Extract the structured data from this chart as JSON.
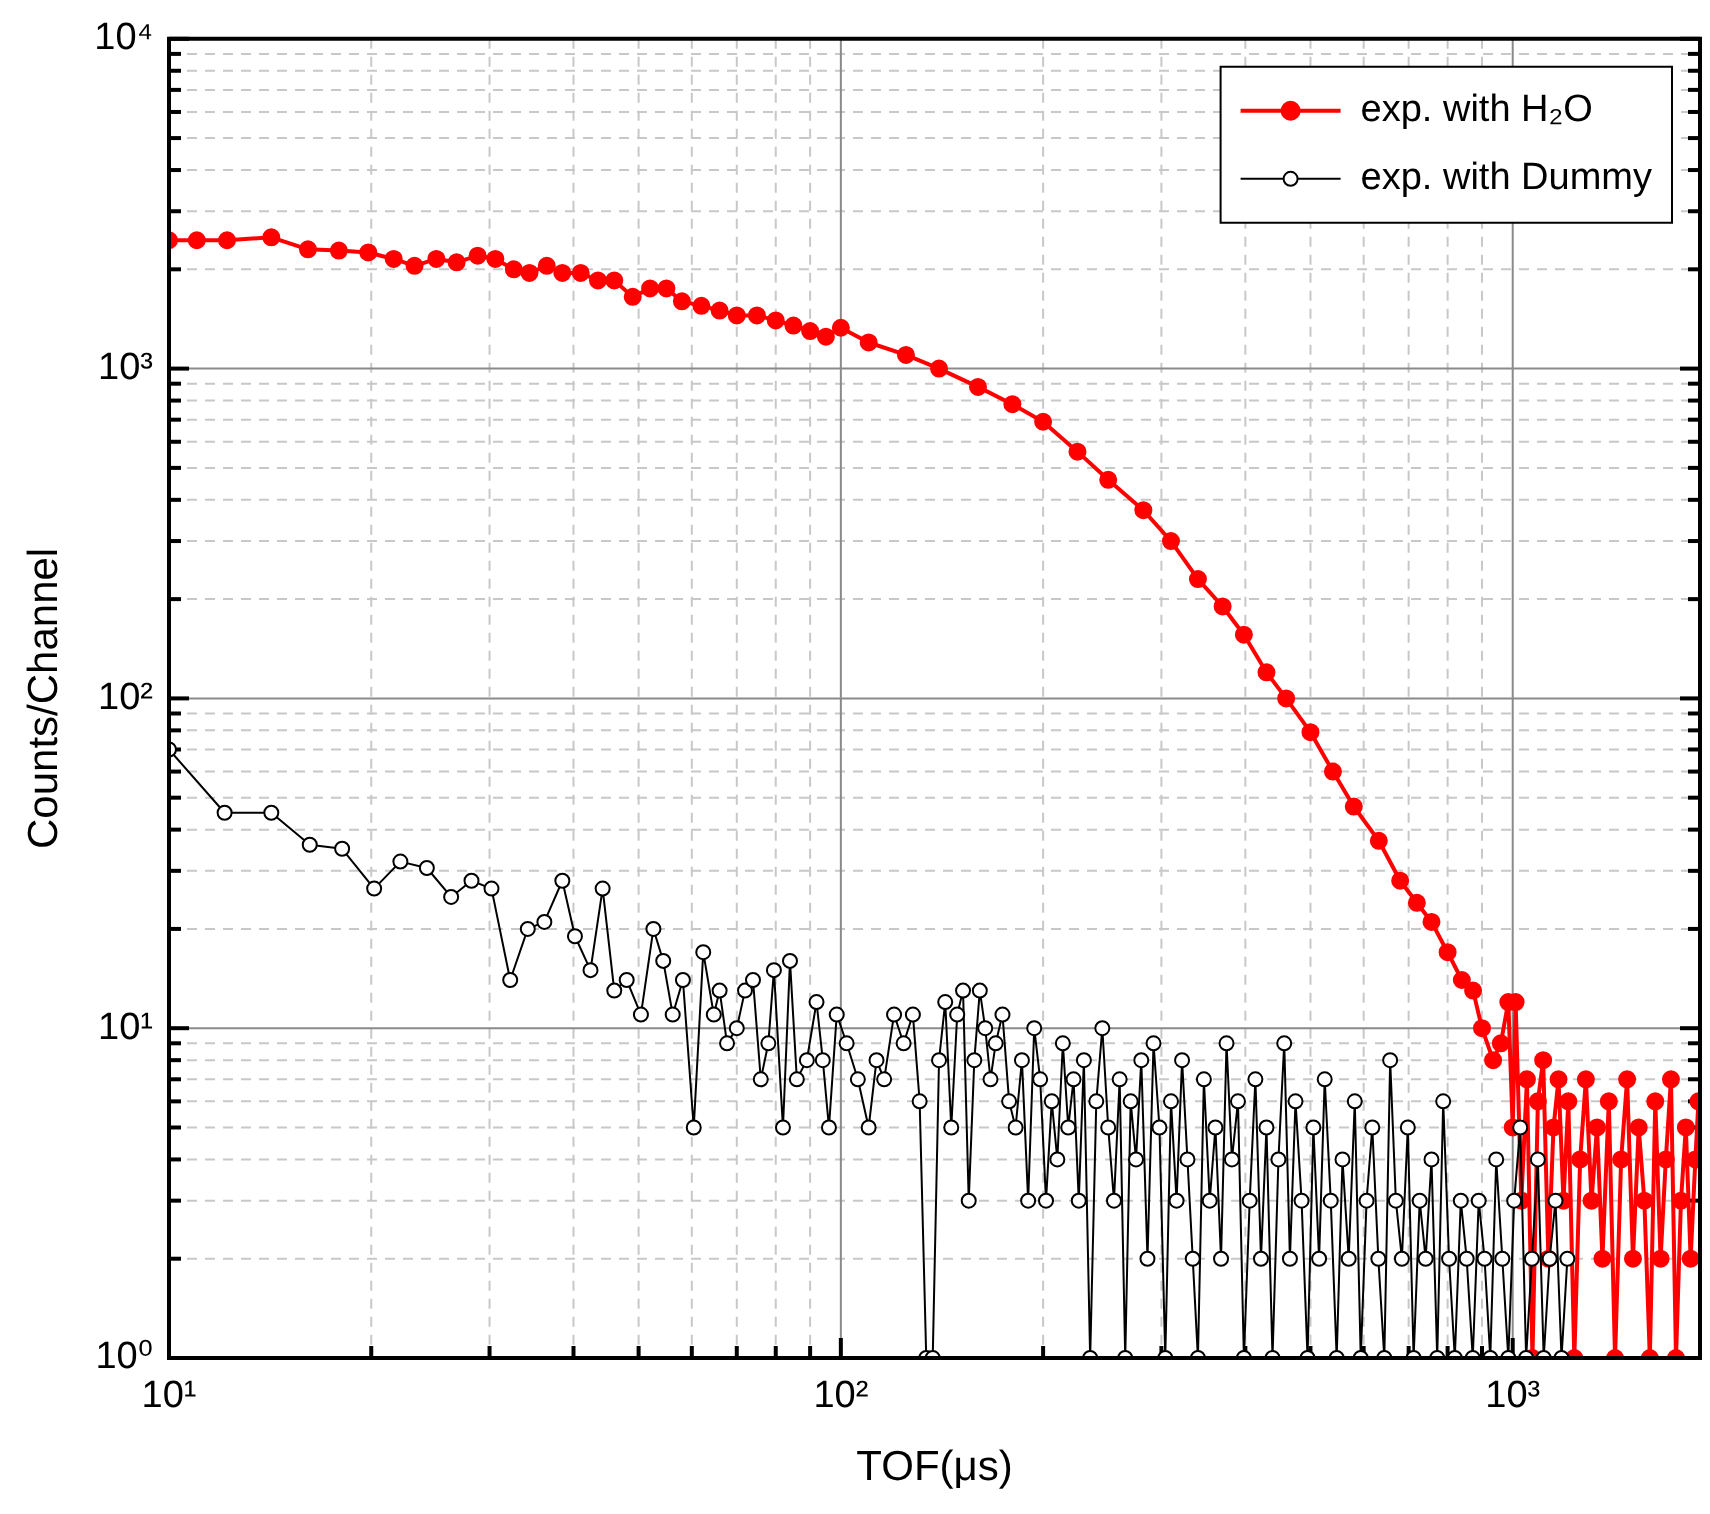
{
  "chart_data": {
    "type": "line",
    "xlabel": "TOF(μs)",
    "ylabel": "Counts/Channel",
    "log": "xy",
    "grid": true,
    "legend": "top right",
    "marker": "circle",
    "line_style": "solid",
    "xlim": [
      10,
      1900
    ],
    "xticks": [
      {
        "value": 10,
        "label": "10¹"
      },
      {
        "value": 20,
        "label": null
      },
      {
        "value": 30,
        "label": null
      },
      {
        "value": 40,
        "label": null
      },
      {
        "value": 50,
        "label": null
      },
      {
        "value": 60,
        "label": null
      },
      {
        "value": 70,
        "label": null
      },
      {
        "value": 80,
        "label": null
      },
      {
        "value": 90,
        "label": null
      },
      {
        "value": 100,
        "label": "10²"
      },
      {
        "value": 200,
        "label": null
      },
      {
        "value": 300,
        "label": null
      },
      {
        "value": 400,
        "label": null
      },
      {
        "value": 500,
        "label": null
      },
      {
        "value": 600,
        "label": null
      },
      {
        "value": 700,
        "label": null
      },
      {
        "value": 800,
        "label": null
      },
      {
        "value": 900,
        "label": null
      },
      {
        "value": 1000,
        "label": "10³"
      }
    ],
    "ylim": [
      1,
      10000
    ],
    "yticks": [
      {
        "value": 1,
        "label": "10⁰"
      },
      {
        "value": 2,
        "label": null
      },
      {
        "value": 3,
        "label": null
      },
      {
        "value": 4,
        "label": null
      },
      {
        "value": 5,
        "label": null
      },
      {
        "value": 6,
        "label": null
      },
      {
        "value": 7,
        "label": null
      },
      {
        "value": 8,
        "label": null
      },
      {
        "value": 9,
        "label": null
      },
      {
        "value": 10,
        "label": "10¹"
      },
      {
        "value": 20,
        "label": null
      },
      {
        "value": 30,
        "label": null
      },
      {
        "value": 40,
        "label": null
      },
      {
        "value": 50,
        "label": null
      },
      {
        "value": 60,
        "label": null
      },
      {
        "value": 70,
        "label": null
      },
      {
        "value": 80,
        "label": null
      },
      {
        "value": 90,
        "label": null
      },
      {
        "value": 100,
        "label": "10²"
      },
      {
        "value": 200,
        "label": null
      },
      {
        "value": 300,
        "label": null
      },
      {
        "value": 400,
        "label": null
      },
      {
        "value": 500,
        "label": null
      },
      {
        "value": 600,
        "label": null
      },
      {
        "value": 700,
        "label": null
      },
      {
        "value": 800,
        "label": null
      },
      {
        "value": 900,
        "label": null
      },
      {
        "value": 1000,
        "label": "10³"
      },
      {
        "value": 2000,
        "label": null
      },
      {
        "value": 3000,
        "label": null
      },
      {
        "value": 4000,
        "label": null
      },
      {
        "value": 5000,
        "label": null
      },
      {
        "value": 6000,
        "label": null
      },
      {
        "value": 7000,
        "label": null
      },
      {
        "value": 8000,
        "label": null
      },
      {
        "value": 9000,
        "label": null
      },
      {
        "value": 10000,
        "label": "10⁴"
      }
    ],
    "series": [
      {
        "name": "exp. with H₂O",
        "color": "#ff0000",
        "x": [
          10,
          11,
          12.2,
          14.2,
          16.1,
          17.9,
          19.8,
          21.6,
          23.2,
          25,
          26.8,
          28.8,
          30.6,
          32.6,
          34.4,
          36.5,
          38.5,
          41,
          43.5,
          46,
          49,
          52,
          55,
          58,
          62,
          66,
          70,
          75,
          80,
          85,
          90,
          95,
          100,
          110,
          125,
          140,
          160,
          180,
          200,
          225,
          250,
          282,
          310,
          340,
          370,
          398,
          430,
          460,
          500,
          540,
          580,
          632,
          680,
          720,
          757,
          800,
          840,
          873,
          900,
          935,
          960,
          985,
          1000,
          1010,
          1030,
          1050,
          1070,
          1090,
          1110,
          1130,
          1150,
          1170,
          1190,
          1210,
          1235,
          1260,
          1285,
          1310,
          1335,
          1360,
          1390,
          1420,
          1450,
          1480,
          1510,
          1540,
          1570,
          1600,
          1630,
          1660,
          1690,
          1720,
          1750,
          1780,
          1810,
          1840,
          1870,
          1890
        ],
        "values": [
          2450,
          2450,
          2450,
          2500,
          2300,
          2280,
          2250,
          2150,
          2050,
          2150,
          2100,
          2200,
          2150,
          2000,
          1950,
          2050,
          1950,
          1950,
          1850,
          1850,
          1650,
          1750,
          1750,
          1600,
          1550,
          1500,
          1450,
          1450,
          1400,
          1350,
          1300,
          1250,
          1330,
          1200,
          1100,
          1000,
          880,
          780,
          690,
          560,
          460,
          372,
          300,
          230,
          190,
          156,
          120,
          100,
          79,
          60,
          47,
          37,
          28,
          24,
          21,
          17,
          14,
          13,
          10,
          8,
          9,
          12,
          5,
          12,
          3,
          7,
          1,
          6,
          8,
          2,
          5,
          7,
          3,
          6,
          1,
          4,
          7,
          3,
          5,
          2,
          6,
          1,
          4,
          7,
          2,
          5,
          3,
          1,
          6,
          2,
          4,
          7,
          1,
          3,
          5,
          2,
          4,
          6
        ]
      },
      {
        "name": "exp. with Dummy",
        "color": "#000000",
        "x": [
          10,
          12.1,
          14.2,
          16.2,
          18.1,
          20.2,
          22.1,
          24.2,
          26.3,
          28.2,
          30.2,
          32.2,
          34.2,
          36.2,
          38.5,
          40.2,
          42.4,
          44.2,
          46,
          48,
          50.4,
          52.6,
          54.4,
          56.2,
          58.2,
          60.4,
          62.4,
          64.7,
          66,
          67.7,
          70,
          72,
          74,
          76,
          78,
          79.5,
          82,
          84,
          86,
          89,
          92,
          94,
          96,
          98.6,
          102,
          106,
          110,
          113,
          116,
          120,
          124,
          128,
          131,
          134,
          137,
          140,
          143,
          146,
          149,
          152,
          155,
          158,
          161,
          164,
          167,
          170,
          174,
          178,
          182,
          186,
          190,
          194,
          198,
          202,
          206,
          210,
          214,
          218,
          222,
          226,
          230,
          235,
          240,
          245,
          250,
          255,
          260,
          265,
          270,
          275,
          280,
          286,
          292,
          298,
          304,
          310,
          316,
          322,
          328,
          334,
          340,
          347,
          354,
          361,
          368,
          375,
          382,
          390,
          398,
          406,
          414,
          422,
          430,
          439,
          448,
          457,
          466,
          475,
          485,
          495,
          505,
          515,
          525,
          536,
          547,
          558,
          570,
          582,
          594,
          606,
          618,
          631,
          644,
          657,
          670,
          684,
          698,
          712,
          727,
          742,
          757,
          772,
          788,
          804,
          820,
          837,
          854,
          872,
          890,
          908,
          926,
          945,
          965,
          985,
          1005,
          1026,
          1047,
          1068,
          1090,
          1112,
          1135,
          1158,
          1182,
          1206
        ],
        "values": [
          70,
          45,
          45,
          36,
          35,
          26.5,
          32,
          30.6,
          25,
          28,
          26.5,
          14,
          20,
          21,
          28,
          19,
          15,
          26.5,
          13,
          14,
          11,
          20,
          16,
          11,
          14,
          5,
          17,
          11,
          13,
          9,
          10,
          13,
          14,
          7,
          9,
          15,
          5,
          16,
          7,
          8,
          12,
          8,
          5,
          11,
          9,
          7,
          5,
          8,
          7,
          11,
          9,
          11,
          6,
          1,
          1,
          8,
          12,
          5,
          11,
          13,
          3,
          8,
          13,
          10,
          7,
          9,
          11,
          6,
          5,
          8,
          3,
          10,
          7,
          3,
          6,
          4,
          9,
          5,
          7,
          3,
          8,
          1,
          6,
          10,
          5,
          3,
          7,
          1,
          6,
          4,
          8,
          2,
          9,
          5,
          1,
          6,
          3,
          8,
          4,
          2,
          1,
          7,
          3,
          5,
          2,
          9,
          4,
          6,
          1,
          3,
          7,
          2,
          5,
          1,
          4,
          9,
          2,
          6,
          3,
          1,
          5,
          2,
          7,
          3,
          1,
          4,
          2,
          6,
          1,
          3,
          5,
          2,
          1,
          8,
          3,
          2,
          5,
          1,
          3,
          2,
          4,
          1,
          6,
          2,
          1,
          3,
          2,
          1,
          3,
          2,
          1,
          4,
          2,
          1,
          3,
          5,
          1,
          2,
          4,
          1,
          2,
          3,
          1,
          2
        ]
      }
    ]
  }
}
